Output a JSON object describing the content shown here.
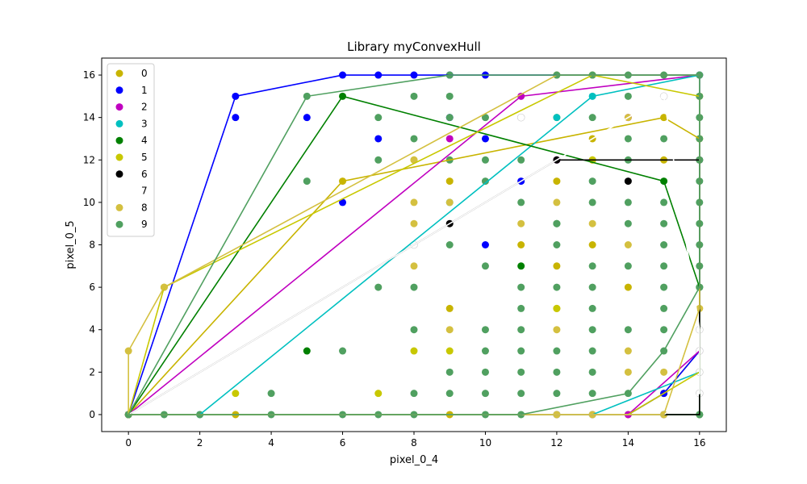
{
  "chart_data": {
    "type": "scatter",
    "title": "Library myConvexHull",
    "xlabel": "pixel_0_4",
    "ylabel": "pixel_0_5",
    "xlim": [
      -0.75,
      16.75
    ],
    "ylim": [
      -0.8,
      16.8
    ],
    "xticks": [
      0,
      2,
      4,
      6,
      8,
      10,
      12,
      14,
      16
    ],
    "yticks": [
      0,
      2,
      4,
      6,
      8,
      10,
      12,
      14,
      16
    ],
    "grid": false,
    "legend_position": "top-left",
    "series": [
      {
        "name": "0",
        "color": "#c8b400",
        "points": [
          [
            0,
            0
          ],
          [
            3,
            0
          ],
          [
            9,
            0
          ],
          [
            12,
            0
          ],
          [
            14,
            0
          ],
          [
            15,
            1
          ],
          [
            15,
            14
          ],
          [
            16,
            13
          ],
          [
            12,
            14
          ],
          [
            6,
            11
          ],
          [
            13,
            13
          ],
          [
            13,
            12
          ],
          [
            12,
            11
          ],
          [
            15,
            12
          ],
          [
            8,
            12
          ],
          [
            9,
            11
          ],
          [
            12,
            7
          ],
          [
            13,
            8
          ],
          [
            14,
            6
          ],
          [
            9,
            5
          ],
          [
            12,
            5
          ],
          [
            11,
            8
          ]
        ],
        "hull": [
          [
            0,
            0
          ],
          [
            14,
            0
          ],
          [
            15,
            1
          ],
          [
            16,
            3
          ],
          [
            16,
            13
          ],
          [
            15,
            14
          ],
          [
            12,
            13
          ],
          [
            6,
            11
          ],
          [
            0,
            0
          ]
        ]
      },
      {
        "name": "1",
        "color": "#0000ff",
        "points": [
          [
            3,
            15
          ],
          [
            3,
            14
          ],
          [
            6,
            16
          ],
          [
            7,
            16
          ],
          [
            8,
            16
          ],
          [
            9,
            16
          ],
          [
            10,
            16
          ],
          [
            5,
            14
          ],
          [
            7,
            13
          ],
          [
            9,
            14
          ],
          [
            10,
            13
          ],
          [
            6,
            10
          ],
          [
            11,
            11
          ],
          [
            10,
            8
          ],
          [
            0,
            0
          ],
          [
            16,
            3
          ],
          [
            15,
            1
          ]
        ],
        "hull": [
          [
            0,
            0
          ],
          [
            3,
            15
          ],
          [
            6,
            16
          ],
          [
            10,
            16
          ],
          [
            16,
            16
          ],
          [
            16,
            3
          ],
          [
            15,
            1
          ],
          [
            14,
            0
          ],
          [
            0,
            0
          ]
        ]
      },
      {
        "name": "2",
        "color": "#c000c0",
        "points": [
          [
            0,
            0
          ],
          [
            14,
            0
          ],
          [
            16,
            3
          ],
          [
            16,
            16
          ],
          [
            11,
            15
          ],
          [
            9,
            13
          ],
          [
            14,
            14
          ],
          [
            12,
            12
          ]
        ],
        "hull": [
          [
            0,
            0
          ],
          [
            14,
            0
          ],
          [
            16,
            3
          ],
          [
            16,
            16
          ],
          [
            11,
            15
          ],
          [
            0,
            0
          ]
        ]
      },
      {
        "name": "3",
        "color": "#00c0c0",
        "points": [
          [
            2,
            0
          ],
          [
            13,
            0
          ],
          [
            16,
            2
          ],
          [
            16,
            16
          ],
          [
            13,
            15
          ],
          [
            12,
            14
          ],
          [
            9,
            10
          ]
        ],
        "hull": [
          [
            2,
            0
          ],
          [
            13,
            0
          ],
          [
            16,
            2
          ],
          [
            16,
            16
          ],
          [
            13,
            15
          ],
          [
            2,
            0
          ]
        ]
      },
      {
        "name": "4",
        "color": "#008000",
        "points": [
          [
            0,
            0
          ],
          [
            16,
            0
          ],
          [
            16,
            6
          ],
          [
            15,
            11
          ],
          [
            6,
            15
          ],
          [
            5,
            3
          ],
          [
            11,
            7
          ],
          [
            12,
            9
          ]
        ],
        "hull": [
          [
            0,
            0
          ],
          [
            16,
            0
          ],
          [
            16,
            6
          ],
          [
            15,
            11
          ],
          [
            6,
            15
          ],
          [
            0,
            0
          ]
        ]
      },
      {
        "name": "5",
        "color": "#c8c800",
        "points": [
          [
            0,
            0
          ],
          [
            1,
            6
          ],
          [
            16,
            2
          ],
          [
            16,
            15
          ],
          [
            13,
            16
          ],
          [
            3,
            1
          ],
          [
            7,
            1
          ],
          [
            8,
            3
          ],
          [
            9,
            3
          ],
          [
            12,
            5
          ],
          [
            13,
            12
          ]
        ],
        "hull": [
          [
            0,
            0
          ],
          [
            14,
            0
          ],
          [
            16,
            2
          ],
          [
            16,
            15
          ],
          [
            13,
            16
          ],
          [
            1,
            6
          ],
          [
            0,
            0
          ]
        ]
      },
      {
        "name": "6",
        "color": "#000000",
        "points": [
          [
            0,
            0
          ],
          [
            12,
            12
          ],
          [
            16,
            12
          ],
          [
            16,
            1
          ],
          [
            14,
            11
          ],
          [
            9,
            9
          ]
        ],
        "hull": [
          [
            0,
            0
          ],
          [
            16,
            0
          ],
          [
            16,
            1
          ],
          [
            16,
            12
          ],
          [
            12,
            12
          ],
          [
            0,
            0
          ]
        ]
      },
      {
        "name": "7",
        "color": "#ffffff",
        "points": [
          [
            11,
            14
          ],
          [
            15,
            15
          ],
          [
            16,
            4
          ],
          [
            16,
            3
          ],
          [
            15,
            0
          ],
          [
            16,
            2
          ],
          [
            16,
            1
          ],
          [
            8,
            8
          ],
          [
            12,
            0
          ],
          [
            13,
            0
          ]
        ],
        "hull": [
          [
            0,
            0
          ],
          [
            15,
            0
          ],
          [
            16,
            1
          ],
          [
            16,
            4
          ],
          [
            15,
            15
          ],
          [
            0,
            0
          ]
        ]
      },
      {
        "name": "8",
        "color": "#d4c040",
        "points": [
          [
            0,
            3
          ],
          [
            0,
            0
          ],
          [
            1,
            6
          ],
          [
            12,
            16
          ],
          [
            16,
            5
          ],
          [
            15,
            2
          ],
          [
            8,
            12
          ],
          [
            8,
            10
          ],
          [
            9,
            10
          ],
          [
            8,
            7
          ],
          [
            9,
            4
          ],
          [
            11,
            9
          ],
          [
            12,
            10
          ],
          [
            12,
            4
          ],
          [
            14,
            3
          ],
          [
            14,
            14
          ],
          [
            14,
            8
          ],
          [
            13,
            9
          ],
          [
            8,
            9
          ],
          [
            14,
            2
          ],
          [
            15,
            0
          ],
          [
            13,
            0
          ],
          [
            12,
            0
          ]
        ],
        "hull": [
          [
            0,
            0
          ],
          [
            15,
            0
          ],
          [
            16,
            5
          ],
          [
            16,
            16
          ],
          [
            12,
            16
          ],
          [
            1,
            6
          ],
          [
            0,
            3
          ],
          [
            0,
            0
          ]
        ]
      },
      {
        "name": "9",
        "color": "#50a060",
        "points": [
          [
            0,
            0
          ],
          [
            16,
            0
          ],
          [
            16,
            16
          ],
          [
            9,
            16
          ],
          [
            5,
            15
          ],
          [
            1,
            0
          ],
          [
            2,
            0
          ],
          [
            4,
            0
          ],
          [
            6,
            0
          ],
          [
            7,
            0
          ],
          [
            8,
            0
          ],
          [
            10,
            0
          ],
          [
            11,
            0
          ],
          [
            4,
            1
          ],
          [
            5,
            11
          ],
          [
            6,
            3
          ],
          [
            7,
            6
          ],
          [
            8,
            6
          ],
          [
            7,
            14
          ],
          [
            7,
            12
          ],
          [
            8,
            15
          ],
          [
            9,
            15
          ],
          [
            8,
            4
          ],
          [
            9,
            8
          ],
          [
            10,
            3
          ],
          [
            10,
            4
          ],
          [
            10,
            1
          ],
          [
            10,
            2
          ],
          [
            10,
            7
          ],
          [
            10,
            11
          ],
          [
            12,
            1
          ],
          [
            12,
            2
          ],
          [
            12,
            3
          ],
          [
            12,
            6
          ],
          [
            12,
            8
          ],
          [
            12,
            9
          ],
          [
            13,
            1
          ],
          [
            13,
            2
          ],
          [
            13,
            3
          ],
          [
            13,
            4
          ],
          [
            13,
            5
          ],
          [
            13,
            6
          ],
          [
            13,
            7
          ],
          [
            13,
            10
          ],
          [
            13,
            11
          ],
          [
            13,
            14
          ],
          [
            14,
            1
          ],
          [
            14,
            4
          ],
          [
            14,
            7
          ],
          [
            14,
            9
          ],
          [
            14,
            10
          ],
          [
            14,
            12
          ],
          [
            14,
            13
          ],
          [
            14,
            15
          ],
          [
            15,
            3
          ],
          [
            15,
            4
          ],
          [
            15,
            5
          ],
          [
            15,
            6
          ],
          [
            15,
            7
          ],
          [
            15,
            8
          ],
          [
            15,
            9
          ],
          [
            15,
            10
          ],
          [
            15,
            13
          ],
          [
            15,
            16
          ],
          [
            16,
            6
          ],
          [
            16,
            7
          ],
          [
            16,
            8
          ],
          [
            16,
            9
          ],
          [
            16,
            10
          ],
          [
            16,
            11
          ],
          [
            16,
            12
          ],
          [
            16,
            13
          ],
          [
            16,
            14
          ],
          [
            16,
            15
          ],
          [
            11,
            1
          ],
          [
            11,
            2
          ],
          [
            11,
            3
          ],
          [
            11,
            4
          ],
          [
            11,
            5
          ],
          [
            11,
            6
          ],
          [
            11,
            10
          ],
          [
            11,
            12
          ],
          [
            9,
            2
          ],
          [
            9,
            1
          ],
          [
            8,
            1
          ],
          [
            8,
            13
          ],
          [
            12,
            16
          ],
          [
            13,
            16
          ],
          [
            14,
            16
          ],
          [
            10,
            12
          ],
          [
            10,
            14
          ],
          [
            9,
            12
          ],
          [
            9,
            14
          ]
        ],
        "hull": [
          [
            0,
            0
          ],
          [
            11,
            0
          ],
          [
            14,
            1
          ],
          [
            15,
            3
          ],
          [
            16,
            6
          ],
          [
            16,
            16
          ],
          [
            9,
            16
          ],
          [
            5,
            15
          ],
          [
            0,
            0
          ]
        ]
      }
    ]
  }
}
